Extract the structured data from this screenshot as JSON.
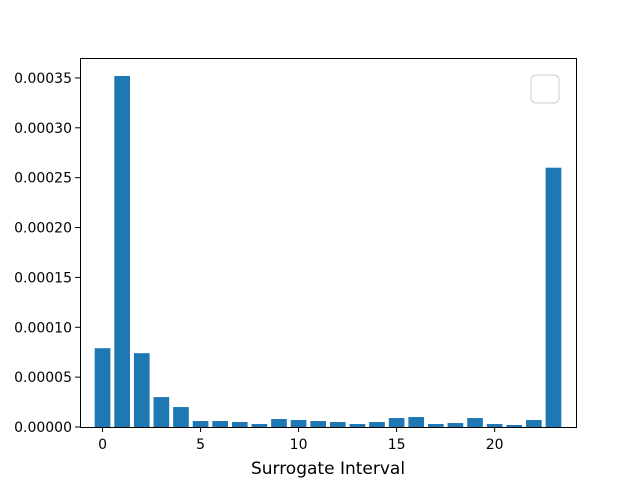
{
  "chart_data": {
    "type": "bar",
    "xlabel": "Surrogate Interval",
    "ylabel": "",
    "title": "",
    "x": [
      0,
      1,
      2,
      3,
      4,
      5,
      6,
      7,
      8,
      9,
      10,
      11,
      12,
      13,
      14,
      15,
      16,
      17,
      18,
      19,
      20,
      21,
      22,
      23
    ],
    "values": [
      7.9e-05,
      0.000352,
      7.4e-05,
      3e-05,
      2e-05,
      6e-06,
      6e-06,
      5e-06,
      3e-06,
      8e-06,
      7e-06,
      6e-06,
      5e-06,
      3e-06,
      5e-06,
      9e-06,
      1e-05,
      3e-06,
      4e-06,
      9e-06,
      3e-06,
      2e-06,
      7e-06,
      0.00026
    ],
    "xlim": [
      -1.15,
      24.15
    ],
    "ylim": [
      0,
      0.00037
    ],
    "xticks": [
      0,
      5,
      10,
      15,
      20
    ],
    "yticks": [
      0,
      5e-05,
      0.0001,
      0.00015,
      0.0002,
      0.00025,
      0.0003,
      0.00035
    ],
    "ytick_labels": [
      "0.00000",
      "0.00005",
      "0.00010",
      "0.00015",
      "0.00020",
      "0.00025",
      "0.00030",
      "0.00035"
    ],
    "bar_color": "#1f77b4",
    "legend_placement": "top-right",
    "legend_entries": [],
    "grid": false
  }
}
